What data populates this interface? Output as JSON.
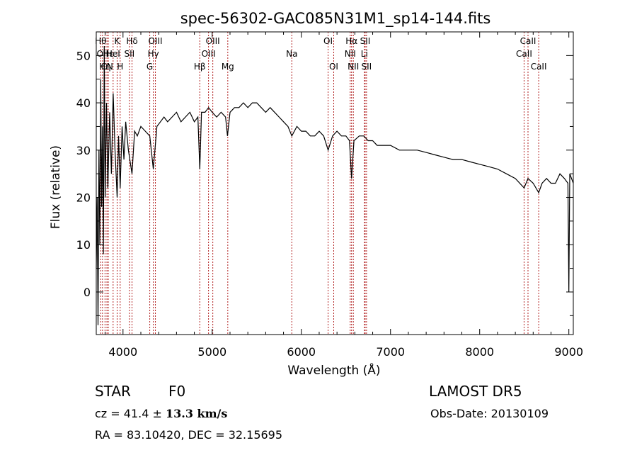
{
  "chart_data": {
    "type": "line",
    "title": "spec-56302-GAC085N31M1_sp14-144.fits",
    "xlabel": "Wavelength (Å)",
    "ylabel": "Flux (relative)",
    "xlim": [
      3700,
      9050
    ],
    "ylim": [
      -9,
      55
    ],
    "xticks": [
      4000,
      5000,
      6000,
      7000,
      8000,
      9000
    ],
    "yticks": [
      0,
      10,
      20,
      30,
      40,
      50
    ],
    "xtick_labels": [
      "4000",
      "5000",
      "6000",
      "7000",
      "8000",
      "9000"
    ],
    "ytick_labels": [
      "0",
      "10",
      "20",
      "30",
      "40",
      "50"
    ],
    "grid": false,
    "line_color": "#000000",
    "marker_line_color": "#b22222",
    "series": [
      {
        "x": [
          3700,
          3710,
          3720,
          3730,
          3740,
          3750,
          3760,
          3770,
          3780,
          3790,
          3800,
          3815,
          3830,
          3850,
          3870,
          3890,
          3910,
          3934,
          3950,
          3968,
          3990,
          4010,
          4030,
          4060,
          4101,
          4130,
          4160,
          4200,
          4250,
          4300,
          4340,
          4380,
          4420,
          4460,
          4500,
          4550,
          4600,
          4650,
          4700,
          4750,
          4800,
          4840,
          4861,
          4880,
          4920,
          4960,
          5000,
          5050,
          5100,
          5150,
          5172,
          5200,
          5250,
          5300,
          5350,
          5400,
          5450,
          5500,
          5550,
          5600,
          5650,
          5700,
          5750,
          5800,
          5850,
          5893,
          5950,
          6000,
          6050,
          6100,
          6150,
          6200,
          6250,
          6300,
          6350,
          6400,
          6450,
          6500,
          6540,
          6563,
          6590,
          6650,
          6700,
          6750,
          6800,
          6850,
          6900,
          7000,
          7100,
          7200,
          7300,
          7400,
          7500,
          7600,
          7700,
          7800,
          7900,
          8000,
          8100,
          8200,
          8300,
          8400,
          8498,
          8542,
          8600,
          8662,
          8700,
          8750,
          8800,
          8850,
          8900,
          8950,
          8990,
          9000,
          9010,
          9030,
          9050
        ],
        "y": [
          5,
          20,
          -7,
          30,
          10,
          45,
          18,
          35,
          8,
          52,
          20,
          40,
          22,
          38,
          25,
          42,
          30,
          20,
          33,
          22,
          35,
          28,
          36,
          30,
          25,
          34,
          33,
          35,
          34,
          33,
          26,
          35,
          36,
          37,
          36,
          37,
          38,
          36,
          37,
          38,
          36,
          37,
          26,
          38,
          38,
          39,
          38,
          37,
          38,
          37,
          33,
          38,
          39,
          39,
          40,
          39,
          40,
          40,
          39,
          38,
          39,
          38,
          37,
          36,
          35,
          33,
          35,
          34,
          34,
          33,
          33,
          34,
          33,
          30,
          33,
          34,
          33,
          33,
          32,
          24,
          32,
          33,
          33,
          32,
          32,
          31,
          31,
          31,
          30,
          30,
          30,
          29.5,
          29,
          28.5,
          28,
          28,
          27.5,
          27,
          26.5,
          26,
          25,
          24,
          22,
          24,
          23,
          21,
          23,
          24,
          23,
          23,
          25,
          24,
          23,
          0,
          25,
          24,
          23
        ]
      }
    ],
    "line_markers": [
      {
        "x": 3750,
        "label": "Hθ",
        "row": 0
      },
      {
        "x": 3770,
        "label": "OII",
        "row": 1
      },
      {
        "x": 3798,
        "label": "Hη",
        "row": 2
      },
      {
        "x": 3820,
        "label": "CN",
        "row": 2
      },
      {
        "x": 3835,
        "label": "Hε",
        "row": 1
      },
      {
        "x": 3889,
        "label": "HeI",
        "row": 1
      },
      {
        "x": 3934,
        "label": "K",
        "row": 0
      },
      {
        "x": 3968,
        "label": "H",
        "row": 2
      },
      {
        "x": 4072,
        "label": "SII",
        "row": 1
      },
      {
        "x": 4101,
        "label": "Hδ",
        "row": 0
      },
      {
        "x": 4300,
        "label": "G",
        "row": 2
      },
      {
        "x": 4340,
        "label": "Hγ",
        "row": 1
      },
      {
        "x": 4363,
        "label": "OIII",
        "row": 0
      },
      {
        "x": 4861,
        "label": "Hβ",
        "row": 2
      },
      {
        "x": 4959,
        "label": "OIII",
        "row": 1
      },
      {
        "x": 5007,
        "label": "OIII",
        "row": 0
      },
      {
        "x": 5175,
        "label": "Mg",
        "row": 2
      },
      {
        "x": 5893,
        "label": "Na",
        "row": 1
      },
      {
        "x": 6300,
        "label": "OI",
        "row": 0
      },
      {
        "x": 6363,
        "label": "OI",
        "row": 2
      },
      {
        "x": 6548,
        "label": "NII",
        "row": 1
      },
      {
        "x": 6563,
        "label": "Hα",
        "row": 0
      },
      {
        "x": 6583,
        "label": "NII",
        "row": 2
      },
      {
        "x": 6707,
        "label": "Li",
        "row": 1
      },
      {
        "x": 6716,
        "label": "SII",
        "row": 0
      },
      {
        "x": 6731,
        "label": "SII",
        "row": 2
      },
      {
        "x": 8498,
        "label": "CaII",
        "row": 1
      },
      {
        "x": 8542,
        "label": "CaII",
        "row": 0
      },
      {
        "x": 8662,
        "label": "CaII",
        "row": 2
      }
    ]
  },
  "info": {
    "class_label": "STAR",
    "subclass": "F0",
    "survey": "LAMOST DR5",
    "cz_text": "cz = 41.4 ± ",
    "cz_error": "13.3 km/s",
    "obs_date": "Obs-Date: 20130109",
    "coords": "RA =  83.10420, DEC =  32.15695"
  }
}
